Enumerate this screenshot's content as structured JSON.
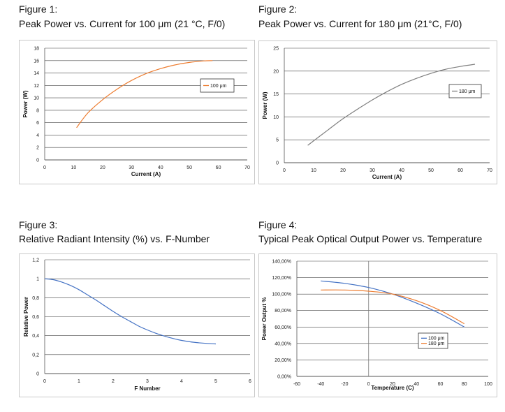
{
  "figures": [
    {
      "label": "Figure 1:",
      "caption": "Peak Power vs. Current for 100 μm (21 °C, F/0)"
    },
    {
      "label": "Figure 2:",
      "caption": "Peak Power vs. Current for 180 μm (21°C, F/0)"
    },
    {
      "label": "Figure 3:",
      "caption": "Relative Radiant Intensity (%) vs. F-Number"
    },
    {
      "label": "Figure 4:",
      "caption": "Typical Peak Optical Output Power vs. Temperature"
    }
  ],
  "chart_data": [
    {
      "type": "line",
      "title": "Peak Power vs. Current for 100 μm (21 °C, F/0)",
      "xlabel": "Current (A)",
      "ylabel": "Power (W)",
      "xlim": [
        0,
        70
      ],
      "ylim": [
        0,
        18
      ],
      "xticks": [
        "0",
        "10",
        "20",
        "30",
        "40",
        "50",
        "60",
        "70"
      ],
      "yticks": [
        "0",
        "2",
        "4",
        "6",
        "8",
        "10",
        "12",
        "14",
        "16",
        "18"
      ],
      "grid": "horizontal",
      "legend_position": "right",
      "series": [
        {
          "name": "100 μm",
          "color": "#ed7d31",
          "x": [
            11,
            15,
            20,
            25,
            30,
            35,
            40,
            45,
            50,
            55,
            58
          ],
          "y": [
            5.2,
            7.6,
            9.7,
            11.4,
            12.8,
            13.9,
            14.7,
            15.3,
            15.7,
            15.95,
            16.0
          ]
        }
      ]
    },
    {
      "type": "line",
      "title": "Peak Power vs. Current for 180 μm (21°C, F/0)",
      "xlabel": "Current (A)",
      "ylabel": "Power (W)",
      "xlim": [
        0,
        70
      ],
      "ylim": [
        0,
        25
      ],
      "xticks": [
        "0",
        "10",
        "20",
        "30",
        "40",
        "50",
        "60",
        "70"
      ],
      "yticks": [
        "0",
        "5",
        "10",
        "15",
        "20",
        "25"
      ],
      "grid": "horizontal",
      "legend_position": "right",
      "series": [
        {
          "name": "180 μm",
          "color": "#7f7f7f",
          "x": [
            8,
            15,
            20,
            25,
            30,
            35,
            40,
            45,
            50,
            55,
            60,
            65
          ],
          "y": [
            3.8,
            7.2,
            9.6,
            11.7,
            13.7,
            15.5,
            17.1,
            18.4,
            19.5,
            20.4,
            21.0,
            21.5
          ]
        }
      ]
    },
    {
      "type": "line",
      "title": "Relative Radiant Intensity (%) vs. F-Number",
      "xlabel": "F Number",
      "ylabel": "Relative Power",
      "xlim": [
        0,
        6
      ],
      "ylim": [
        0,
        1.2
      ],
      "xticks": [
        "0",
        "1",
        "2",
        "3",
        "4",
        "5",
        "6"
      ],
      "yticks": [
        "0",
        "0,2",
        "0,4",
        "0,6",
        "0,8",
        "1",
        "1,2"
      ],
      "grid": "horizontal",
      "legend_position": "none",
      "series": [
        {
          "name": "Relative Power",
          "color": "#4472c4",
          "x": [
            0,
            0.25,
            0.5,
            0.75,
            1,
            1.25,
            1.5,
            1.75,
            2,
            2.25,
            2.5,
            2.75,
            3,
            3.25,
            3.5,
            3.75,
            4,
            4.25,
            4.5,
            4.75,
            5
          ],
          "y": [
            1.0,
            0.99,
            0.965,
            0.93,
            0.885,
            0.83,
            0.775,
            0.715,
            0.655,
            0.6,
            0.55,
            0.5,
            0.46,
            0.425,
            0.395,
            0.37,
            0.35,
            0.335,
            0.325,
            0.318,
            0.313
          ]
        }
      ]
    },
    {
      "type": "line",
      "title": "Typical Peak Optical Output Power vs. Temperature",
      "xlabel": "Temperature (C)",
      "ylabel": "Power Output %",
      "xlim": [
        -60,
        100
      ],
      "ylim": [
        0,
        140
      ],
      "xticks": [
        "-60",
        "-40",
        "-20",
        "0",
        "20",
        "40",
        "60",
        "80",
        "100"
      ],
      "yticks": [
        "0,00%",
        "20,00%",
        "40,00%",
        "60,00%",
        "80,00%",
        "100,00%",
        "120,00%",
        "140,00%"
      ],
      "grid": "horizontal",
      "legend_position": "bottom-right",
      "series": [
        {
          "name": "100 μm",
          "color": "#4472c4",
          "x": [
            -40,
            -20,
            0,
            20,
            40,
            60,
            80
          ],
          "y": [
            116,
            113,
            108,
            100,
            89,
            76,
            60
          ]
        },
        {
          "name": "180 μm",
          "color": "#ed7d31",
          "x": [
            -40,
            -20,
            0,
            20,
            40,
            60,
            80
          ],
          "y": [
            105,
            105,
            103.5,
            100,
            92,
            80,
            64
          ]
        }
      ]
    }
  ]
}
